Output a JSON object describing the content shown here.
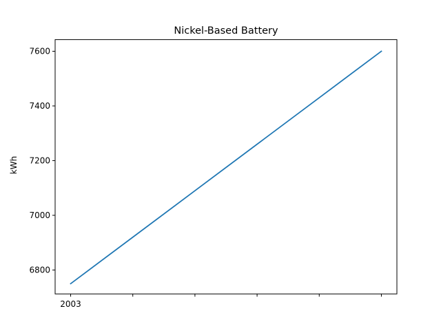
{
  "chart_data": {
    "type": "line",
    "title": "Nickel-Based Battery",
    "xlabel": "",
    "ylabel": "kWh",
    "x": [
      2003,
      2004,
      2005,
      2006,
      2007,
      2008
    ],
    "x_tick_labels": [
      "2003",
      "",
      "",
      "",
      "",
      ""
    ],
    "series": [
      {
        "name": "",
        "values": [
          6750,
          6920,
          7090,
          7260,
          7430,
          7600
        ],
        "color": "#1f77b4"
      }
    ],
    "xlim": [
      2002.75,
      2008.25
    ],
    "ylim": [
      6712.5,
      7642.5
    ],
    "y_ticks": [
      6800,
      7000,
      7200,
      7400,
      7600
    ],
    "y_tick_labels": [
      "6800",
      "7000",
      "7200",
      "7400",
      "7600"
    ],
    "grid": false,
    "legend": "none"
  }
}
